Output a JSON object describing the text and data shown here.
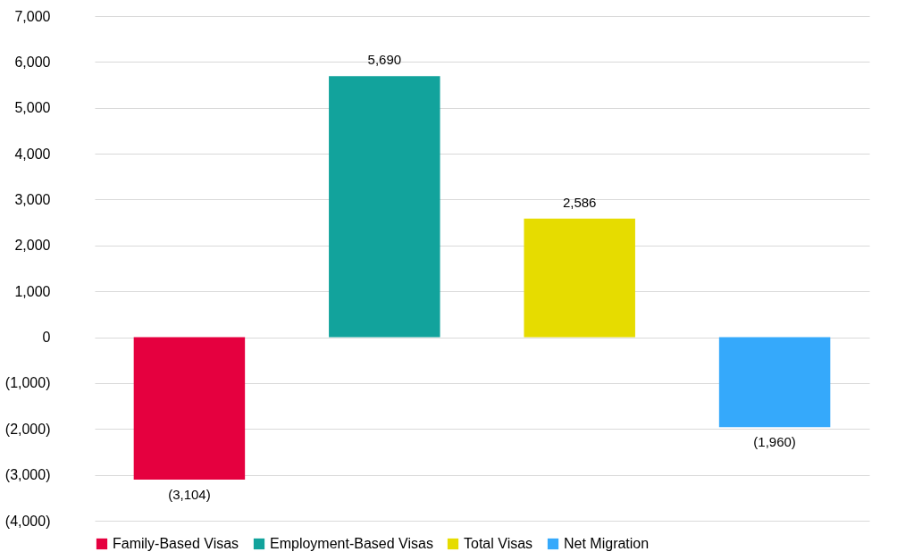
{
  "chart_data": {
    "type": "bar",
    "categories": [
      null,
      null,
      null,
      null
    ],
    "series": [
      {
        "name": "Family-Based Visas",
        "color": "#e5003f",
        "values": [
          -3104,
          null,
          null,
          null
        ],
        "value_labels": [
          "(3,104)",
          null,
          null,
          null
        ]
      },
      {
        "name": "Employment-Based Visas",
        "color": "#12a39c",
        "values": [
          null,
          5690,
          null,
          null
        ],
        "value_labels": [
          null,
          "5,690",
          null,
          null
        ]
      },
      {
        "name": "Total Visas",
        "color": "#e6dc00",
        "values": [
          null,
          null,
          2586,
          null
        ],
        "value_labels": [
          null,
          null,
          "2,586",
          null
        ]
      },
      {
        "name": "Net Migration",
        "color": "#35a9fb",
        "values": [
          null,
          null,
          null,
          -1960
        ],
        "value_labels": [
          null,
          null,
          null,
          "(1,960)"
        ]
      }
    ],
    "ylim": [
      -4000,
      7000
    ],
    "yticks": [
      {
        "value": -4000,
        "label": "(4,000)"
      },
      {
        "value": -3000,
        "label": "(3,000)"
      },
      {
        "value": -2000,
        "label": "(2,000)"
      },
      {
        "value": -1000,
        "label": "(1,000)"
      },
      0,
      {
        "value": 1000,
        "label": "1,000"
      },
      {
        "value": 2000,
        "label": "2,000"
      },
      {
        "value": 3000,
        "label": "3,000"
      },
      {
        "value": 4000,
        "label": "4,000"
      },
      {
        "value": 5000,
        "label": "5,000"
      },
      {
        "value": 6000,
        "label": "6,000"
      },
      {
        "value": 7000,
        "label": "7,000"
      }
    ],
    "grid": "y",
    "legend": "bottom",
    "tick_labels": "y"
  }
}
